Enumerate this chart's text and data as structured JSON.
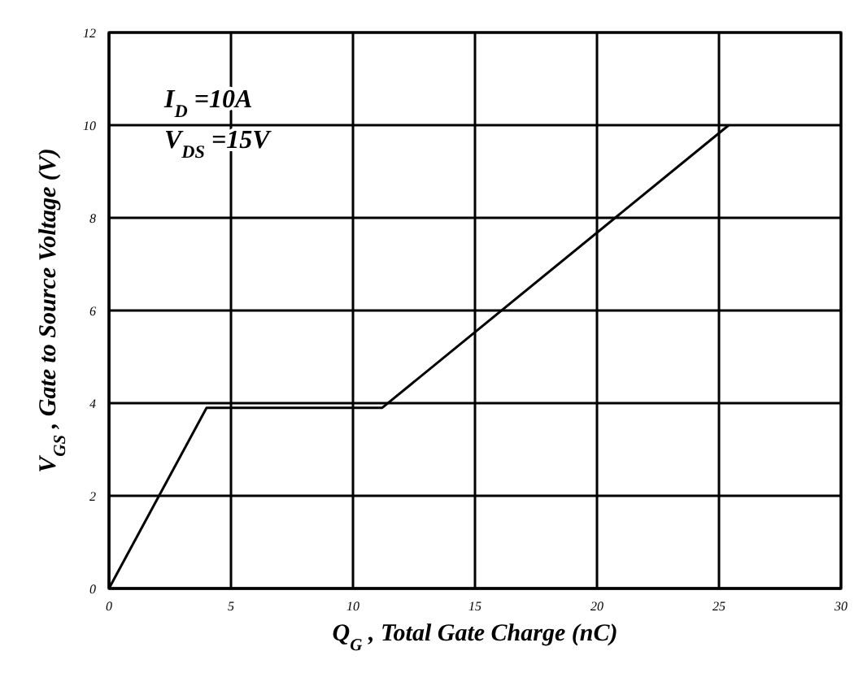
{
  "chart_data": {
    "type": "line",
    "xlabel": "Q$_{G}$ , Total Gate Charge (nC)",
    "ylabel": "V$_{GS}$ , Gate to Source Voltage (V)",
    "annotations": [
      "I$_{D}$ =10A",
      "V$_{DS}$ =15V"
    ],
    "x": [
      0,
      4,
      11.2,
      25.4
    ],
    "series": [
      {
        "color": "#000000",
        "values": [
          0,
          3.9,
          3.9,
          10
        ]
      }
    ],
    "xlim": [
      0,
      30
    ],
    "xticks": [
      0,
      5,
      10,
      15,
      20,
      25,
      30
    ],
    "ylim": [
      0,
      12
    ],
    "yticks": [
      0,
      2,
      4,
      6,
      8,
      10,
      12
    ],
    "grid": true,
    "marker": "none",
    "line_style": "solid"
  }
}
